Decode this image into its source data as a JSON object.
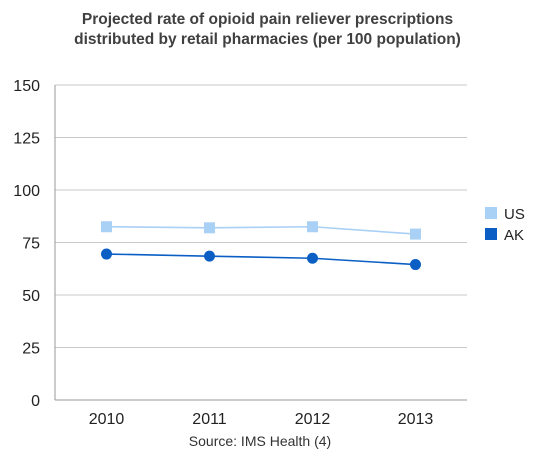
{
  "chart_data": {
    "type": "line",
    "title_lines": [
      "Projected rate of opioid pain reliever prescriptions",
      "distributed by retail pharmacies (per 100 population)"
    ],
    "categories": [
      "2010",
      "2011",
      "2012",
      "2013"
    ],
    "ylim": [
      0,
      150
    ],
    "yticks": [
      0,
      25,
      50,
      75,
      100,
      125,
      150
    ],
    "grid": true,
    "legend_position": "right",
    "series": [
      {
        "name": "US",
        "values": [
          82.5,
          82.0,
          82.5,
          79.0
        ],
        "color": "#a9d0f5",
        "marker": "square"
      },
      {
        "name": "AK",
        "values": [
          69.5,
          68.5,
          67.5,
          64.5
        ],
        "color": "#0b5fc4",
        "marker": "circle"
      }
    ],
    "source": "Source: IMS Health (4)"
  }
}
